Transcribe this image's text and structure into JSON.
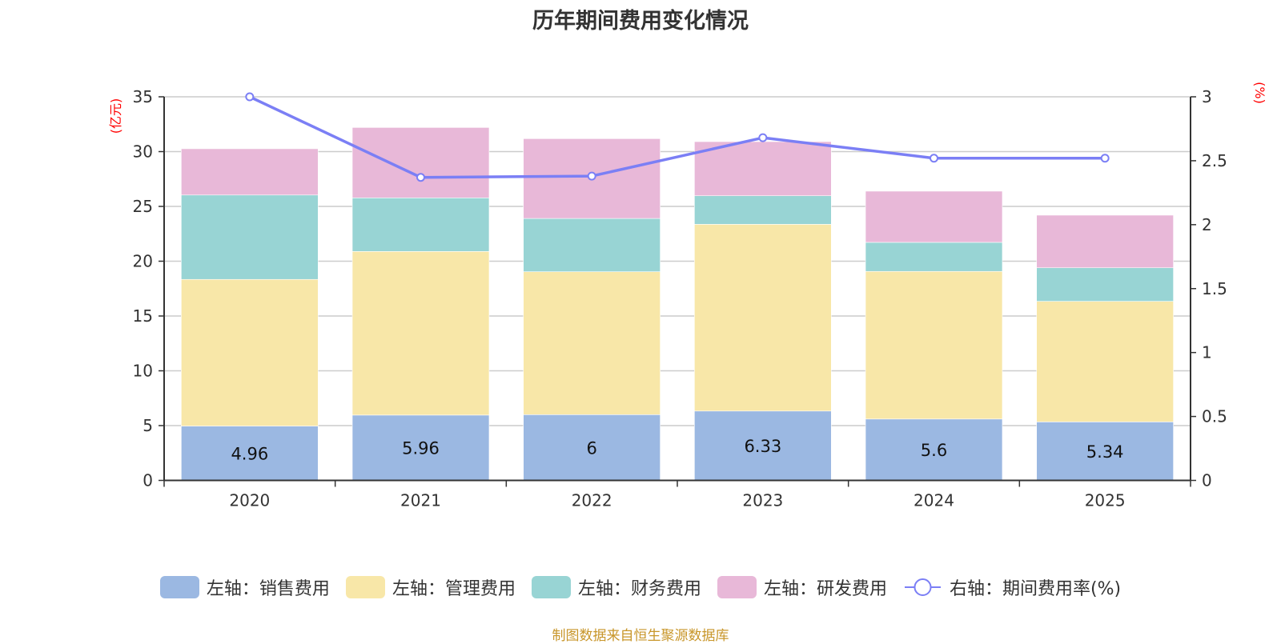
{
  "title": "历年期间费用变化情况",
  "footer": "制图数据来自恒生聚源数据库",
  "colors": {
    "sales": "#9bb8e2",
    "management": "#f8e7a8",
    "finance": "#98d4d4",
    "rnd": "#e8b8d8",
    "rate": "#7b7ff5",
    "unit_label": "#ff0000",
    "footer": "#c8962a"
  },
  "chart_data": {
    "type": "bar",
    "stacked": true,
    "title": "历年期间费用变化情况",
    "categories": [
      "2020",
      "2021",
      "2022",
      "2023",
      "2024",
      "2025"
    ],
    "series": [
      {
        "name": "左轴：销售费用",
        "axis": "left",
        "type": "bar",
        "color_key": "sales",
        "values": [
          4.96,
          5.96,
          6,
          6.33,
          5.6,
          5.34
        ],
        "labels": [
          "4.96",
          "5.96",
          "6",
          "6.33",
          "5.6",
          "5.34"
        ]
      },
      {
        "name": "左轴：管理费用",
        "axis": "left",
        "type": "bar",
        "color_key": "management",
        "values": [
          13.38,
          14.93,
          13.04,
          17.04,
          13.47,
          11.0
        ]
      },
      {
        "name": "左轴：财务费用",
        "axis": "left",
        "type": "bar",
        "color_key": "finance",
        "values": [
          7.7,
          4.89,
          4.86,
          2.6,
          2.65,
          3.06
        ]
      },
      {
        "name": "左轴：研发费用",
        "axis": "left",
        "type": "bar",
        "color_key": "rnd",
        "values": [
          4.22,
          6.42,
          7.28,
          4.94,
          4.67,
          4.8
        ]
      },
      {
        "name": "右轴：期间费用率(%)",
        "axis": "right",
        "type": "line",
        "color_key": "rate",
        "values": [
          3.0,
          2.37,
          2.38,
          2.68,
          2.52,
          2.52
        ]
      }
    ],
    "left_axis": {
      "label": "(亿元)",
      "ylim": [
        0,
        35
      ],
      "ticks": [
        "0",
        "5",
        "10",
        "15",
        "20",
        "25",
        "30",
        "35"
      ]
    },
    "right_axis": {
      "label": "(%)",
      "ylim": [
        0,
        3
      ],
      "ticks": [
        "0",
        "0.5",
        "1",
        "1.5",
        "2",
        "2.5",
        "3"
      ]
    },
    "grid": true,
    "legend": "bottom-center"
  }
}
